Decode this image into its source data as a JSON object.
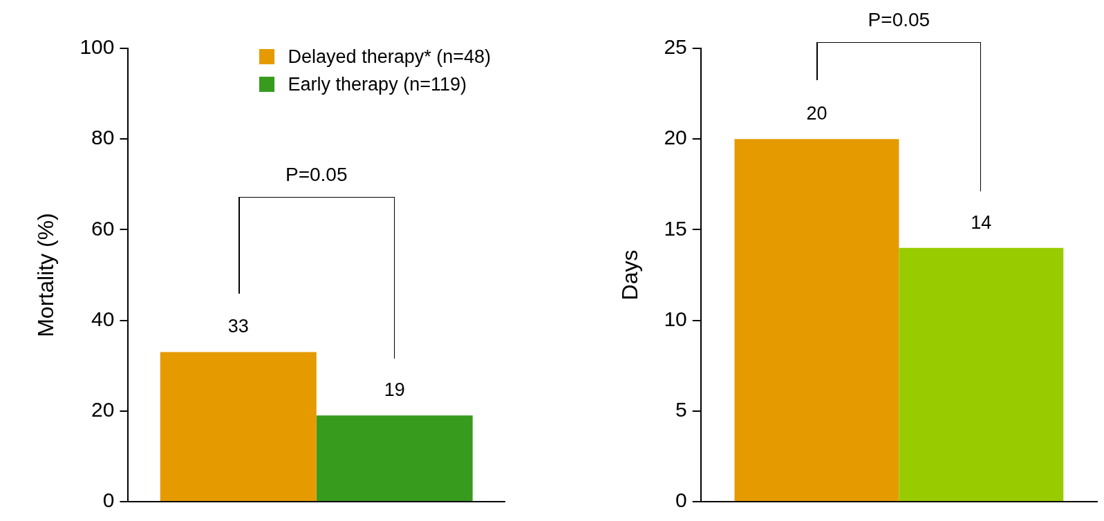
{
  "chart_data": [
    {
      "type": "bar",
      "ylabel": "Mortality (%)",
      "categories": [
        null
      ],
      "series": [
        {
          "name": "Delayed therapy* (n=48)",
          "color": "#e59a00",
          "values": [
            33
          ]
        },
        {
          "name": "Early therapy (n=119)",
          "color": "#379b1e",
          "values": [
            19
          ]
        }
      ],
      "ylim": [
        0,
        100
      ],
      "yticks": [
        0,
        20,
        40,
        60,
        80,
        100
      ],
      "grid": false,
      "legend": "top right",
      "data_labels": true,
      "annotations": [
        "P=0.05"
      ]
    },
    {
      "type": "bar",
      "ylabel": "Days",
      "categories": [
        null
      ],
      "series": [
        {
          "color": "#e59a00",
          "values": [
            20
          ]
        },
        {
          "color": "#99cc00",
          "values": [
            14
          ]
        }
      ],
      "ylim": [
        0,
        25
      ],
      "yticks": [
        0,
        5,
        10,
        15,
        20,
        25
      ],
      "grid": false,
      "data_labels": true,
      "annotations": [
        "P=0.05"
      ]
    }
  ]
}
